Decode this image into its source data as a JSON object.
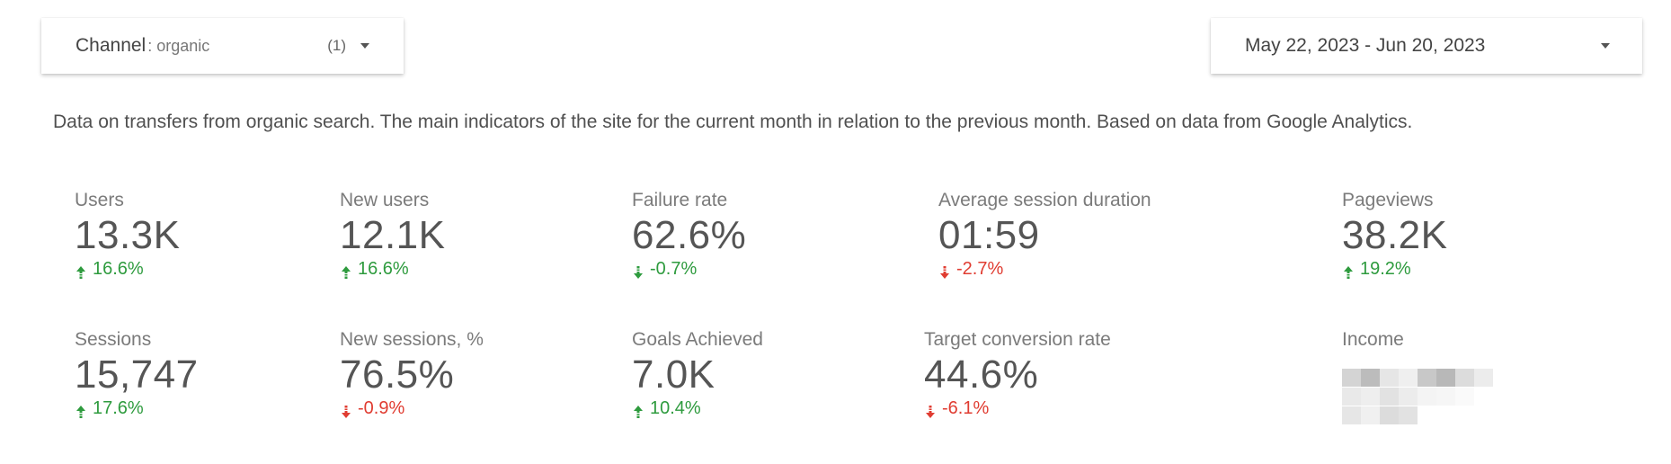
{
  "filter": {
    "label": "Channel",
    "value": ": organic",
    "count": "(1)",
    "caret_icon": "caret-down-icon"
  },
  "date_range": {
    "value": "May 22, 2023 - Jun 20, 2023",
    "caret_icon": "caret-down-icon"
  },
  "description": "Data on transfers from organic search. The main indicators of the site for the current month in relation to the previous month. Based on data from Google Analytics.",
  "colors": {
    "up": "#2e9b3e",
    "down": "#e03c31"
  },
  "metrics_row1": [
    {
      "label": "Users",
      "value": "13.3K",
      "change": "16.6%",
      "direction": "up"
    },
    {
      "label": "New users",
      "value": "12.1K",
      "change": "16.6%",
      "direction": "up"
    },
    {
      "label": "Failure rate",
      "value": "62.6%",
      "change": "-0.7%",
      "direction": "down-good"
    },
    {
      "label": "Average session duration",
      "value": "01:59",
      "change": "-2.7%",
      "direction": "down"
    },
    {
      "label": "Pageviews",
      "value": "38.2K",
      "change": "19.2%",
      "direction": "up"
    }
  ],
  "metrics_row2": [
    {
      "label": "Sessions",
      "value": "15,747",
      "change": "17.6%",
      "direction": "up"
    },
    {
      "label": "New sessions, %",
      "value": "76.5%",
      "change": "-0.9%",
      "direction": "down"
    },
    {
      "label": "Goals Achieved",
      "value": "7.0K",
      "change": "10.4%",
      "direction": "up"
    },
    {
      "label": "Target conversion rate",
      "value": "44.6%",
      "change": "-6.1%",
      "direction": "down"
    },
    {
      "label": "Income",
      "value": "",
      "change": "",
      "direction": "blurred"
    }
  ]
}
